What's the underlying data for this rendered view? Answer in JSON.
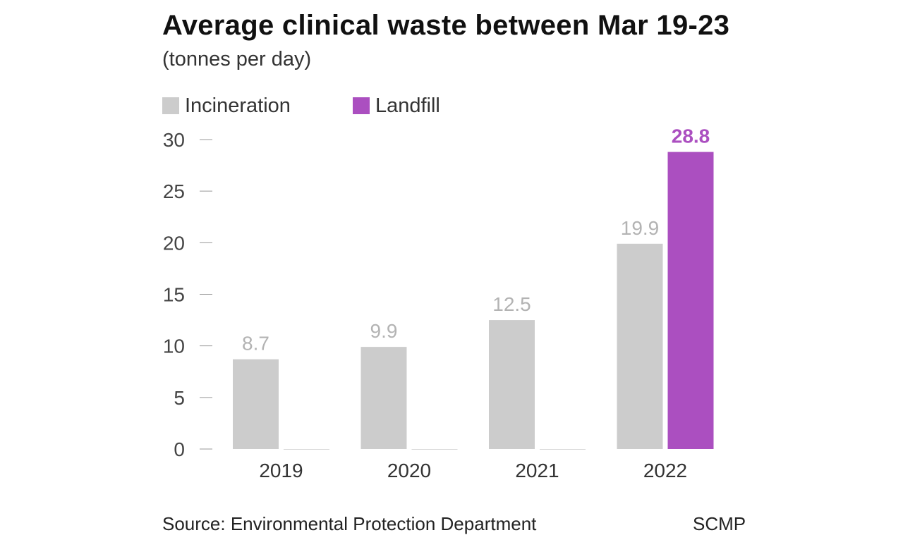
{
  "chart_data": {
    "type": "bar",
    "title": "Average clinical waste between Mar 19-23",
    "subtitle": "(tonnes per day)",
    "categories": [
      "2019",
      "2020",
      "2021",
      "2022"
    ],
    "series": [
      {
        "name": "Incineration",
        "values": [
          8.7,
          9.9,
          12.5,
          19.9
        ],
        "labels": [
          "8.7",
          "9.9",
          "12.5",
          "19.9"
        ],
        "color": "#cccccc",
        "label_color": "#b3b3b3"
      },
      {
        "name": "Landfill",
        "values": [
          0,
          0,
          0,
          28.8
        ],
        "labels": [
          "",
          "",
          "",
          "28.8"
        ],
        "color": "#ab4fc0",
        "label_color": "#ab4fc0"
      }
    ],
    "ylim": [
      0,
      30
    ],
    "yticks": [
      "0",
      "5",
      "10",
      "15",
      "20",
      "25",
      "30"
    ],
    "grid": false,
    "legend_position": "top-left"
  },
  "footer": {
    "source": "Source: Environmental Protection Department",
    "credit": "SCMP"
  }
}
